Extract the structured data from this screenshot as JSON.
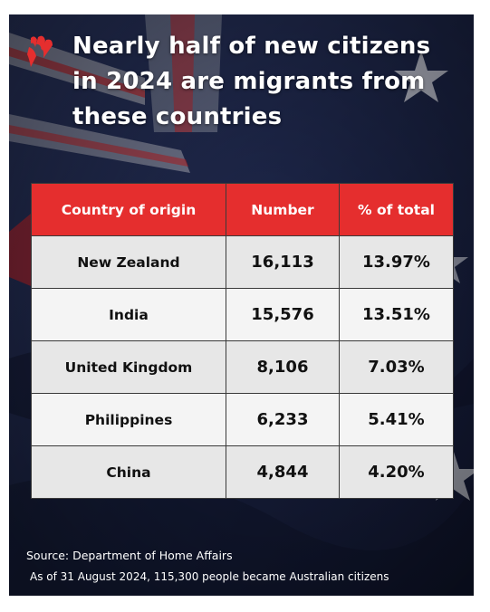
{
  "header": {
    "title": "Nearly half of new citizens in 2024 are migrants from these countries"
  },
  "colors": {
    "header_red": "#e52e2e",
    "background_navy": "#1b2446",
    "row_light": "#f4f4f4",
    "row_dark": "#e7e7e7"
  },
  "chart_data": {
    "type": "table",
    "columns": [
      "Country of origin",
      "Number",
      "% of total"
    ],
    "rows": [
      [
        "New Zealand",
        "16,113",
        "13.97%"
      ],
      [
        "India",
        "15,576",
        "13.51%"
      ],
      [
        "United Kingdom",
        "8,106",
        "7.03%"
      ],
      [
        "Philippines",
        "6,233",
        "5.41%"
      ],
      [
        "China",
        "4,844",
        "4.20%"
      ]
    ]
  },
  "footer": {
    "source": "Source: Department of Home Affairs",
    "note": "As of 31 August 2024, 115,300 people became Australian citizens"
  }
}
